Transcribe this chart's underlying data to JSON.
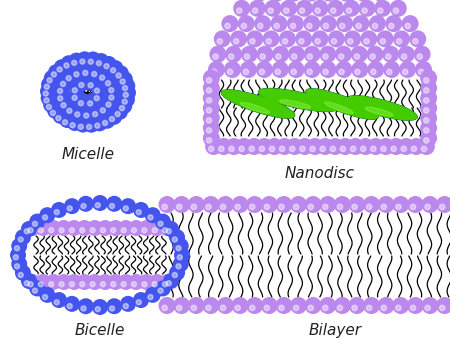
{
  "background_color": "#ffffff",
  "label_fontsize": 11,
  "labels": {
    "micelle": "Micelle",
    "nanodisc": "Nanodisc",
    "bicelle": "Bicelle",
    "bilayer": "Bilayer"
  },
  "colors": {
    "blue_ball": "#4455ee",
    "blue_ball_dark": "#2233cc",
    "purple_ball": "#bb88ee",
    "purple_ball_light": "#ddaaff",
    "green_helix": "#44cc00",
    "dark_green": "#005533",
    "tail_color": "#111111"
  },
  "figsize": [
    4.5,
    3.54
  ],
  "dpi": 100
}
